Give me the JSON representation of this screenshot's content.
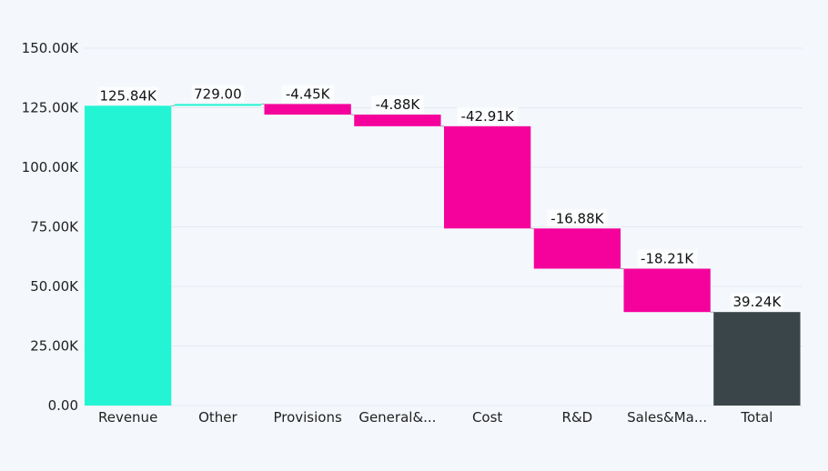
{
  "chart_data": {
    "type": "waterfall",
    "categories": [
      "Revenue",
      "Other",
      "Provisions",
      "General&...",
      "Cost",
      "R&D",
      "Sales&Ma...",
      "Total"
    ],
    "values": [
      125840,
      729,
      -4450,
      -4880,
      -42910,
      -16880,
      -18210,
      39240
    ],
    "data_labels": [
      "125.84K",
      "729.00",
      "-4.45K",
      "-4.88K",
      "-42.91K",
      "-16.88K",
      "-18.21K",
      "39.24K"
    ],
    "kinds": [
      "increase",
      "increase",
      "decrease",
      "decrease",
      "decrease",
      "decrease",
      "decrease",
      "total"
    ],
    "ylim": [
      0,
      150000
    ],
    "yticks": [
      0,
      25000,
      50000,
      75000,
      100000,
      125000,
      150000
    ],
    "ytick_labels": [
      "0.00",
      "25.00K",
      "50.00K",
      "75.00K",
      "100.00K",
      "125.00K",
      "150.00K"
    ],
    "grid": true,
    "colors": {
      "increase": "#23f5d4",
      "decrease": "#f5029c",
      "total": "#394548",
      "background": "#f4f7fc"
    }
  }
}
